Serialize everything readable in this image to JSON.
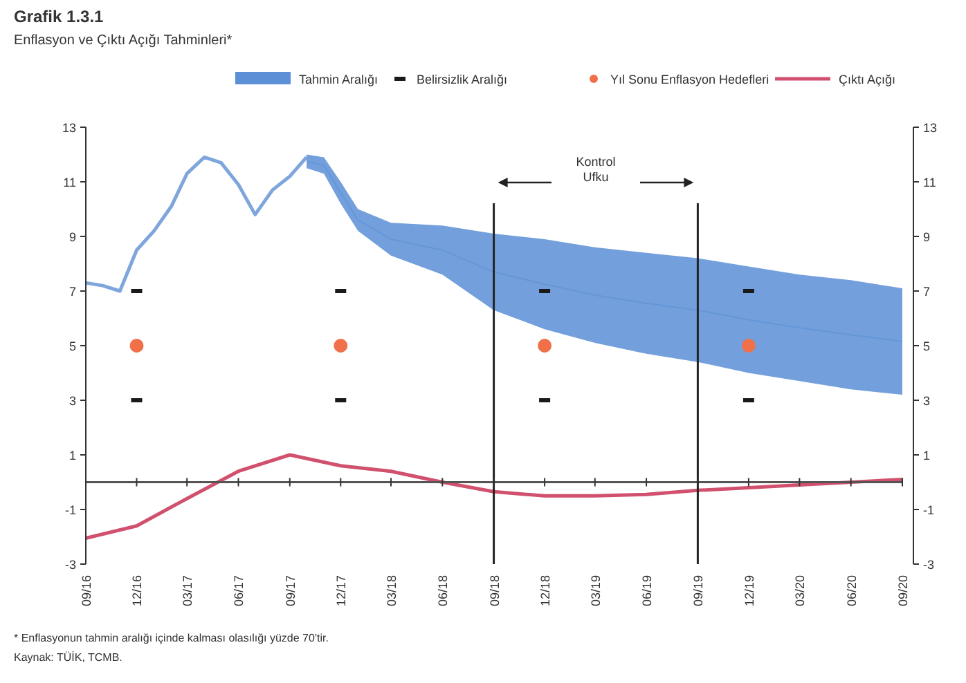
{
  "chart_data": {
    "type": "line",
    "title": "Grafik 1.3.1",
    "subtitle": "Enflasyon ve Çıktı Açığı Tahminleri*",
    "xlim": [
      "2016-09",
      "2020-09"
    ],
    "xticks": [
      {
        "value": "2016-09",
        "label": "09/16"
      },
      {
        "value": "2016-12",
        "label": "12/16"
      },
      {
        "value": "2017-03",
        "label": "03/17"
      },
      {
        "value": "2017-06",
        "label": "06/17"
      },
      {
        "value": "2017-09",
        "label": "09/17"
      },
      {
        "value": "2017-12",
        "label": "12/17"
      },
      {
        "value": "2018-03",
        "label": "03/18"
      },
      {
        "value": "2018-06",
        "label": "06/18"
      },
      {
        "value": "2018-09",
        "label": "09/18"
      },
      {
        "value": "2018-12",
        "label": "12/18"
      },
      {
        "value": "2019-03",
        "label": "03/19"
      },
      {
        "value": "2019-06",
        "label": "06/19"
      },
      {
        "value": "2019-09",
        "label": "09/19"
      },
      {
        "value": "2019-12",
        "label": "12/19"
      },
      {
        "value": "2020-03",
        "label": "03/20"
      },
      {
        "value": "2020-06",
        "label": "06/20"
      },
      {
        "value": "2020-09",
        "label": "09/20"
      }
    ],
    "ylim": [
      -3,
      13
    ],
    "yticks": [
      -3,
      -1,
      1,
      3,
      5,
      7,
      9,
      11,
      13
    ],
    "y2lim": [
      -3,
      13
    ],
    "y2ticks": [
      -3,
      -1,
      1,
      3,
      5,
      7,
      9,
      11,
      13
    ],
    "grid": false,
    "legend": "top",
    "series": [
      {
        "name": "Tahmin Aralığı",
        "color": "#5b8fd6",
        "x": [
          "2017-10",
          "2017-11",
          "2017-12",
          "2018-01",
          "2018-03",
          "2018-06",
          "2018-09",
          "2018-12",
          "2019-03",
          "2019-06",
          "2019-09",
          "2019-12",
          "2020-03",
          "2020-06",
          "2020-09"
        ],
        "values": [
          11.75,
          11.6,
          10.6,
          9.6,
          8.9,
          8.5,
          7.7,
          7.25,
          6.85,
          6.55,
          6.3,
          5.95,
          5.65,
          5.4,
          5.15
        ],
        "lower": [
          11.5,
          11.3,
          10.2,
          9.2,
          8.3,
          7.6,
          6.3,
          5.6,
          5.1,
          4.7,
          4.4,
          4.0,
          3.7,
          3.4,
          3.2
        ],
        "upper": [
          12.0,
          11.9,
          11.0,
          10.0,
          9.5,
          9.4,
          9.1,
          8.9,
          8.6,
          8.4,
          8.2,
          7.9,
          7.6,
          7.4,
          7.1
        ]
      },
      {
        "color": "#7fa6dc",
        "marker": "none",
        "x": [
          "2016-09",
          "2016-10",
          "2016-11",
          "2016-12",
          "2017-01",
          "2017-02",
          "2017-03",
          "2017-04",
          "2017-05",
          "2017-06",
          "2017-07",
          "2017-08",
          "2017-09",
          "2017-10"
        ],
        "values": [
          7.3,
          7.2,
          7.0,
          8.5,
          9.2,
          10.1,
          11.3,
          11.9,
          11.7,
          10.9,
          9.8,
          10.7,
          11.2,
          11.9
        ]
      },
      {
        "name": "Belirsizlik Aralığı",
        "type": "scatter",
        "color": "#1a1a1a",
        "marker": "square",
        "x": [
          "2016-12",
          "2016-12",
          "2017-12",
          "2017-12",
          "2018-12",
          "2018-12",
          "2019-12",
          "2019-12"
        ],
        "values": [
          7,
          3,
          7,
          3,
          7,
          3,
          7,
          3
        ]
      },
      {
        "name": "Yıl Sonu Enflasyon Hedefleri",
        "type": "scatter",
        "color": "#f0704a",
        "marker": "circle",
        "x": [
          "2016-12",
          "2017-12",
          "2018-12",
          "2019-12"
        ],
        "values": [
          5,
          5,
          5,
          5
        ]
      },
      {
        "name": "Çıktı Açığı",
        "color": "#d0506e",
        "marker": "none",
        "x": [
          "2016-09",
          "2016-12",
          "2017-03",
          "2017-06",
          "2017-09",
          "2017-12",
          "2018-03",
          "2018-06",
          "2018-09",
          "2018-12",
          "2019-03",
          "2019-06",
          "2019-09",
          "2019-12",
          "2020-03",
          "2020-06",
          "2020-09"
        ],
        "values": [
          -2.05,
          -1.6,
          -0.6,
          0.4,
          1.0,
          0.6,
          0.4,
          0.0,
          -0.35,
          -0.5,
          -0.5,
          -0.45,
          -0.3,
          -0.2,
          -0.1,
          0.0,
          0.1
        ]
      }
    ],
    "ref_lines": [
      {
        "axis": "y",
        "value": 0,
        "color": "#555555"
      },
      {
        "axis": "x",
        "value": "2018-09",
        "color": "#222222"
      },
      {
        "axis": "x",
        "value": "2019-09",
        "color": "#222222"
      }
    ],
    "annotations": [
      "Kontrol Ufku",
      "* Enflasyonun tahmin aralığı içinde kalması olasılığı yüzde 70'tir.",
      "Kaynak: TÜİK, TCMB."
    ]
  }
}
